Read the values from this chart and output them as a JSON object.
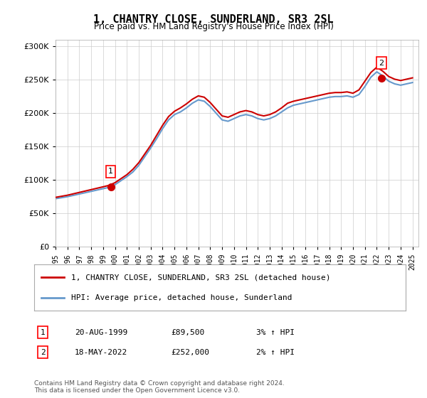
{
  "title": "1, CHANTRY CLOSE, SUNDERLAND, SR3 2SL",
  "subtitle": "Price paid vs. HM Land Registry's House Price Index (HPI)",
  "ylabel": "",
  "ylim": [
    0,
    310000
  ],
  "yticks": [
    0,
    50000,
    100000,
    150000,
    200000,
    250000,
    300000
  ],
  "xlim_start": 1995.0,
  "xlim_end": 2025.5,
  "line1_label": "1, CHANTRY CLOSE, SUNDERLAND, SR3 2SL (detached house)",
  "line2_label": "HPI: Average price, detached house, Sunderland",
  "line1_color": "#cc0000",
  "line2_color": "#6699cc",
  "sale1_date": 1999.64,
  "sale1_price": 89500,
  "sale1_label": "1",
  "sale2_date": 2022.38,
  "sale2_price": 252000,
  "sale2_label": "2",
  "annotation1": "20-AUG-1999    £89,500    3% ↑ HPI",
  "annotation2": "18-MAY-2022    £252,000    2% ↑ HPI",
  "footnote": "Contains HM Land Registry data © Crown copyright and database right 2024.\nThis data is licensed under the Open Government Licence v3.0.",
  "background_color": "#ffffff",
  "grid_color": "#cccccc",
  "hpi_years": [
    1995.0,
    1995.5,
    1996.0,
    1996.5,
    1997.0,
    1997.5,
    1998.0,
    1998.5,
    1999.0,
    1999.5,
    2000.0,
    2000.5,
    2001.0,
    2001.5,
    2002.0,
    2002.5,
    2003.0,
    2003.5,
    2004.0,
    2004.5,
    2005.0,
    2005.5,
    2006.0,
    2006.5,
    2007.0,
    2007.5,
    2008.0,
    2008.5,
    2009.0,
    2009.5,
    2010.0,
    2010.5,
    2011.0,
    2011.5,
    2012.0,
    2012.5,
    2013.0,
    2013.5,
    2014.0,
    2014.5,
    2015.0,
    2015.5,
    2016.0,
    2016.5,
    2017.0,
    2017.5,
    2018.0,
    2018.5,
    2019.0,
    2019.5,
    2020.0,
    2020.5,
    2021.0,
    2021.5,
    2022.0,
    2022.5,
    2023.0,
    2023.5,
    2024.0,
    2024.5,
    2025.0
  ],
  "hpi_values": [
    72000,
    73500,
    75000,
    77000,
    79000,
    81000,
    83000,
    85000,
    87000,
    89000,
    93000,
    99000,
    105000,
    112000,
    122000,
    135000,
    148000,
    162000,
    177000,
    190000,
    198000,
    202000,
    208000,
    215000,
    220000,
    218000,
    210000,
    200000,
    190000,
    188000,
    192000,
    196000,
    198000,
    196000,
    192000,
    190000,
    192000,
    196000,
    202000,
    208000,
    212000,
    214000,
    216000,
    218000,
    220000,
    222000,
    224000,
    225000,
    225000,
    226000,
    224000,
    228000,
    240000,
    254000,
    262000,
    256000,
    248000,
    244000,
    242000,
    244000,
    246000
  ],
  "price_years": [
    1995.0,
    1995.5,
    1996.0,
    1996.5,
    1997.0,
    1997.5,
    1998.0,
    1998.5,
    1999.0,
    1999.5,
    2000.0,
    2000.5,
    2001.0,
    2001.5,
    2002.0,
    2002.5,
    2003.0,
    2003.5,
    2004.0,
    2004.5,
    2005.0,
    2005.5,
    2006.0,
    2006.5,
    2007.0,
    2007.5,
    2008.0,
    2008.5,
    2009.0,
    2009.5,
    2010.0,
    2010.5,
    2011.0,
    2011.5,
    2012.0,
    2012.5,
    2013.0,
    2013.5,
    2014.0,
    2014.5,
    2015.0,
    2015.5,
    2016.0,
    2016.5,
    2017.0,
    2017.5,
    2018.0,
    2018.5,
    2019.0,
    2019.5,
    2020.0,
    2020.5,
    2021.0,
    2021.5,
    2022.0,
    2022.5,
    2023.0,
    2023.5,
    2024.0,
    2024.5,
    2025.0
  ],
  "price_values": [
    74000,
    75600,
    77200,
    79300,
    81400,
    83500,
    85600,
    87700,
    89800,
    92000,
    96000,
    102000,
    108000,
    116000,
    126000,
    139000,
    152000,
    167000,
    182000,
    195000,
    203000,
    208000,
    214000,
    221000,
    226000,
    224000,
    216000,
    206000,
    196000,
    194000,
    198000,
    202000,
    204000,
    202000,
    198000,
    196000,
    198000,
    202000,
    208000,
    215000,
    218000,
    220000,
    222000,
    224000,
    226000,
    228000,
    230000,
    231000,
    231000,
    232000,
    230000,
    235000,
    248000,
    261000,
    269000,
    263000,
    255000,
    251000,
    249000,
    251000,
    253000
  ]
}
